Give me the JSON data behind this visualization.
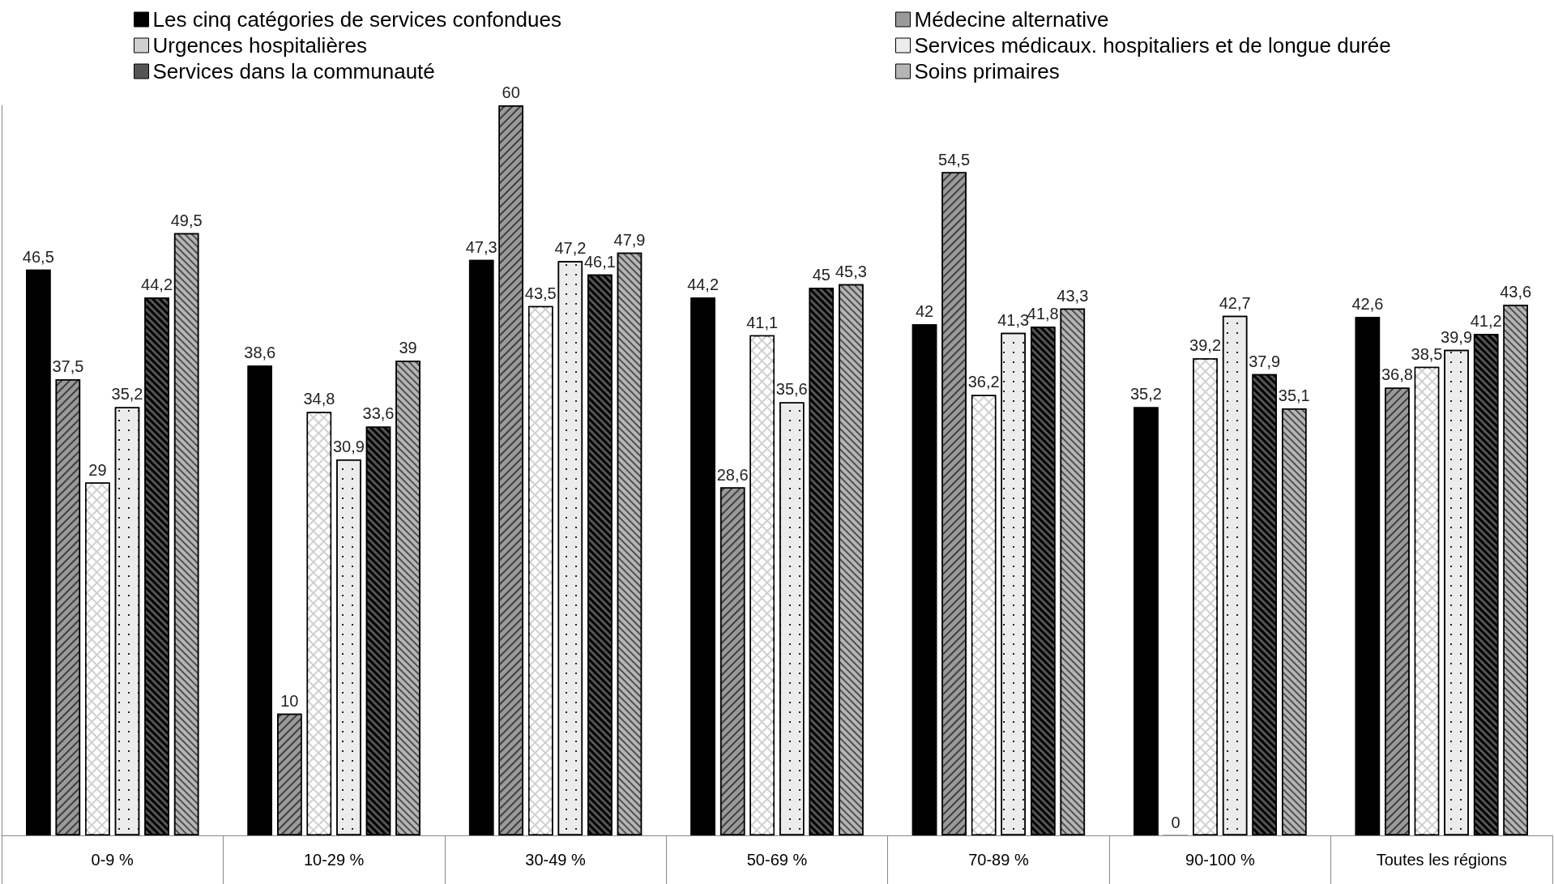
{
  "chart_data": {
    "type": "bar",
    "categories": [
      "0-9 %",
      "10-29 %",
      "30-49 %",
      "50-69 %",
      "70-89 %",
      "90-100 %",
      "Toutes les régions"
    ],
    "series": [
      {
        "name": "Les cinq catégories de services confondues",
        "color": "#000000",
        "values": [
          46.5,
          38.6,
          47.3,
          44.2,
          42,
          35.2,
          42.6
        ],
        "value_labels": [
          "46,5",
          "38,6",
          "47,3",
          "44,2",
          "42",
          "35,2",
          "42,6"
        ]
      },
      {
        "name": "Médecine alternative",
        "color": "#9a9a9a",
        "values": [
          37.5,
          10,
          60,
          28.6,
          54.5,
          0,
          36.8
        ],
        "value_labels": [
          "37,5",
          "10",
          "60",
          "28,6",
          "54,5",
          "0",
          "36,8"
        ]
      },
      {
        "name": "Urgences hospitalières",
        "color": "#d0d0d0",
        "values": [
          29,
          34.8,
          43.5,
          41.1,
          36.2,
          39.2,
          38.5
        ],
        "value_labels": [
          "29",
          "34,8",
          "43,5",
          "41,1",
          "36,2",
          "39,2",
          "38,5"
        ]
      },
      {
        "name": "Services médicaux. hospitaliers et de longue durée",
        "color": "#ececec",
        "values": [
          35.2,
          30.9,
          47.2,
          35.6,
          41.3,
          42.7,
          39.9
        ],
        "value_labels": [
          "35,2",
          "30,9",
          "47,2",
          "35,6",
          "41,3",
          "42,7",
          "39,9"
        ]
      },
      {
        "name": "Services dans la communauté",
        "color": "#555555",
        "values": [
          44.2,
          33.6,
          46.1,
          45,
          41.8,
          37.9,
          41.2
        ],
        "value_labels": [
          "44,2",
          "33,6",
          "46,1",
          "45",
          "41,8",
          "37,9",
          "41,2"
        ]
      },
      {
        "name": "Soins primaires",
        "color": "#b5b5b5",
        "values": [
          49.5,
          39,
          47.9,
          45.3,
          43.3,
          35.1,
          43.6
        ],
        "value_labels": [
          "49,5",
          "39",
          "47,9",
          "45,3",
          "43,3",
          "35,1",
          "43,6"
        ]
      }
    ],
    "legend": "top",
    "grid": false,
    "tick_labels": "x"
  }
}
